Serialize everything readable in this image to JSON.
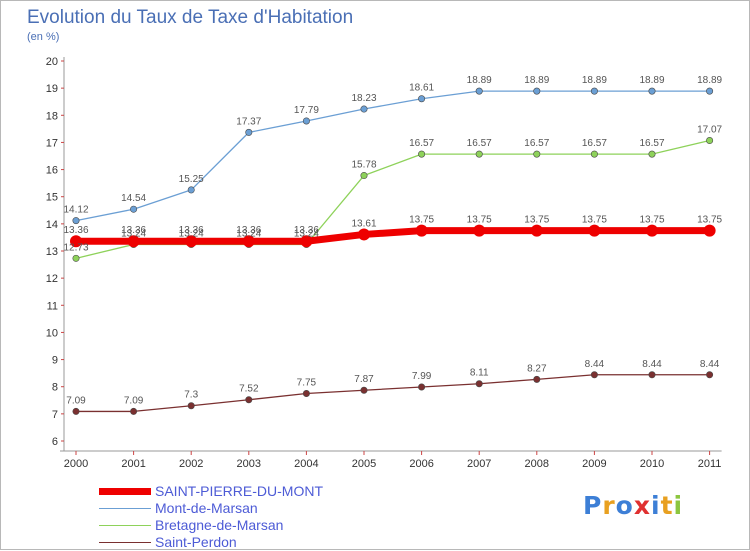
{
  "header": {
    "title": "Evolution du Taux de Taxe d'Habitation",
    "unit": "(en %)"
  },
  "logo": {
    "text": "Proxiti",
    "letters": [
      {
        "ch": "P",
        "color": "#3d7fd6"
      },
      {
        "ch": "r",
        "color": "#e8a020"
      },
      {
        "ch": "o",
        "color": "#3d7fd6"
      },
      {
        "ch": "x",
        "color": "#e03030"
      },
      {
        "ch": "i",
        "color": "#3d7fd6"
      },
      {
        "ch": "t",
        "color": "#e8a020"
      },
      {
        "ch": "i",
        "color": "#8cc63f"
      }
    ]
  },
  "chart_data": {
    "type": "line",
    "title": "Evolution du Taux de Taxe d'Habitation",
    "ylabel": "(en %)",
    "xlabel": "",
    "ylim": [
      6,
      20
    ],
    "yticks": [
      6,
      7,
      8,
      9,
      10,
      11,
      12,
      13,
      14,
      15,
      16,
      17,
      18,
      19,
      20
    ],
    "grid": false,
    "legend_position": "bottom-left",
    "categories": [
      "2000",
      "2001",
      "2002",
      "2003",
      "2004",
      "2005",
      "2006",
      "2007",
      "2008",
      "2009",
      "2010",
      "2011"
    ],
    "series": [
      {
        "name": "SAINT-PIERRE-DU-MONT",
        "color": "#ee0000",
        "values": [
          13.36,
          13.36,
          13.36,
          13.36,
          13.36,
          13.61,
          13.75,
          13.75,
          13.75,
          13.75,
          13.75,
          13.75
        ],
        "labels": [
          "13.36",
          "13.36",
          "13.36",
          "13.36",
          "13.36",
          "13.61",
          "13.75",
          "13.75",
          "13.75",
          "13.75",
          "13.75",
          "13.75"
        ]
      },
      {
        "name": "Mont-de-Marsan",
        "color": "#6b9fd4",
        "values": [
          14.12,
          14.54,
          15.25,
          17.37,
          17.79,
          18.23,
          18.61,
          18.89,
          18.89,
          18.89,
          18.89,
          18.89
        ],
        "labels": [
          "14.12",
          "14.54",
          "15.25",
          "17.37",
          "17.79",
          "18.23",
          "18.61",
          "18.89",
          "18.89",
          "18.89",
          "18.89",
          "18.89"
        ]
      },
      {
        "name": "Bretagne-de-Marsan",
        "color": "#8ed25a",
        "values": [
          12.73,
          13.24,
          13.24,
          13.24,
          13.24,
          15.78,
          16.57,
          16.57,
          16.57,
          16.57,
          16.57,
          17.07
        ],
        "labels": [
          "12.73",
          "13.24",
          "13.24",
          "13.24",
          "13.24",
          "15.78",
          "16.57",
          "16.57",
          "16.57",
          "16.57",
          "16.57",
          "17.07"
        ]
      },
      {
        "name": "Saint-Perdon",
        "color": "#7a3030",
        "values": [
          7.09,
          7.09,
          7.3,
          7.52,
          7.75,
          7.87,
          7.99,
          8.11,
          8.27,
          8.44,
          8.44,
          8.44
        ],
        "labels": [
          "7.09",
          "7.09",
          "7.3",
          "7.52",
          "7.75",
          "7.87",
          "7.99",
          "8.11",
          "8.27",
          "8.44",
          "8.44",
          "8.44"
        ]
      }
    ]
  }
}
